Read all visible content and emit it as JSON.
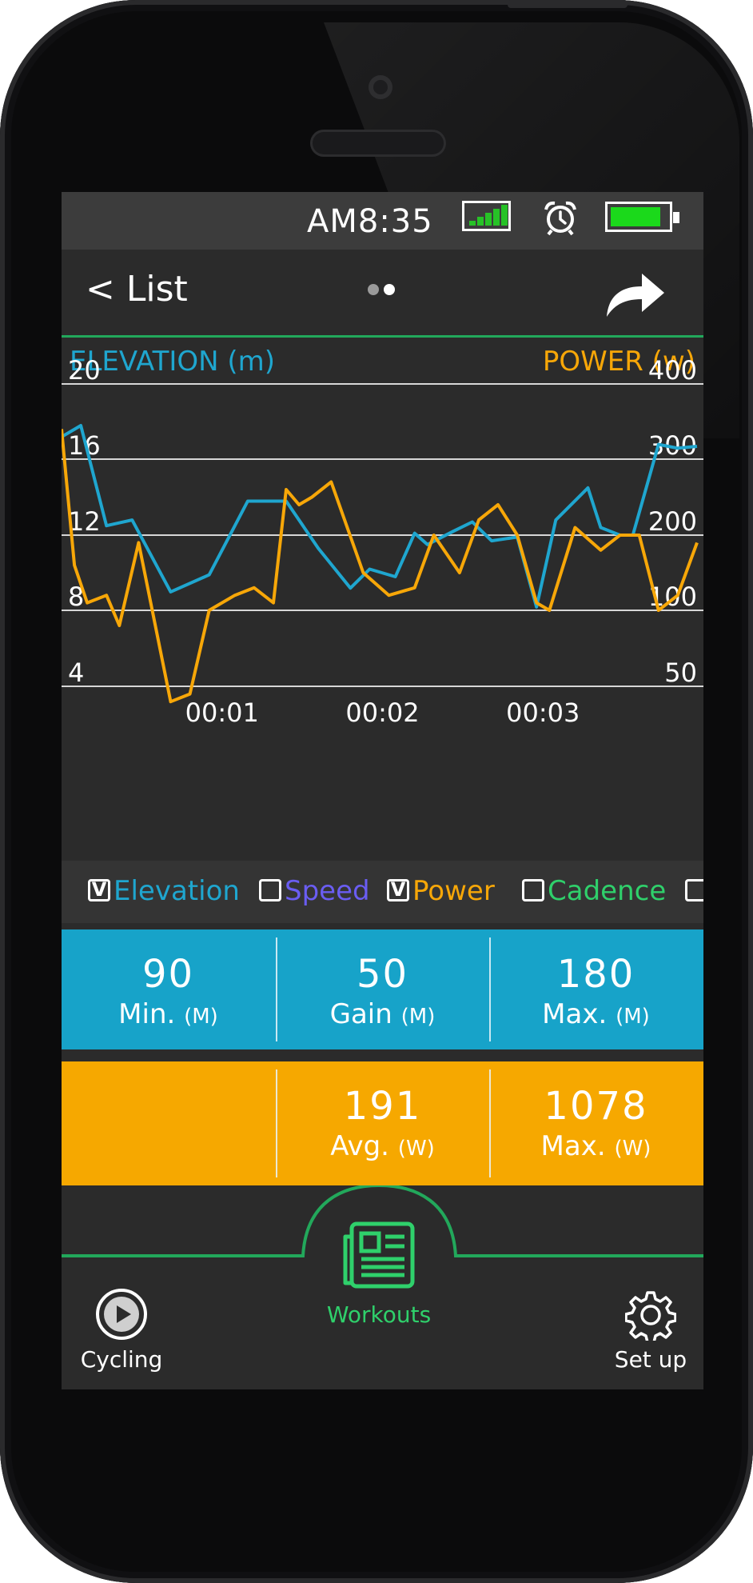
{
  "status": {
    "time": "AM8:35"
  },
  "nav": {
    "back_label": "< List"
  },
  "chart": {
    "left_title": "ELEVATION (m)",
    "right_title": "POWER (w)"
  },
  "chart_data": {
    "type": "line",
    "left_axis": {
      "title": "ELEVATION (m)",
      "ticks": [
        "20",
        "16",
        "12",
        "8",
        "4"
      ],
      "range": [
        4,
        20
      ]
    },
    "right_axis": {
      "title": "POWER (w)",
      "ticks": [
        "400",
        "300",
        "200",
        "100",
        "50"
      ]
    },
    "x_ticks": [
      "00:01",
      "00:02",
      "00:03"
    ],
    "grid": true,
    "series": [
      {
        "name": "Elevation",
        "axis": "left",
        "color": "#1fa6cf",
        "x": [
          0,
          0.03,
          0.07,
          0.11,
          0.17,
          0.23,
          0.29,
          0.35,
          0.4,
          0.45,
          0.48,
          0.52,
          0.55,
          0.57,
          0.61,
          0.64,
          0.67,
          0.71,
          0.74,
          0.77,
          0.82,
          0.84,
          0.87,
          0.89,
          0.93,
          0.96,
          0.99
        ],
        "y": [
          17.2,
          17.8,
          12.5,
          12.8,
          9.0,
          9.9,
          13.8,
          13.8,
          11.3,
          9.2,
          10.2,
          9.8,
          12.1,
          11.5,
          12.2,
          12.7,
          11.7,
          11.9,
          8.2,
          12.8,
          14.5,
          12.4,
          12.0,
          12.0,
          16.8,
          16.6,
          16.7
        ]
      },
      {
        "name": "Power",
        "axis": "right",
        "color": "#f7a708",
        "x": [
          0,
          0.02,
          0.04,
          0.07,
          0.09,
          0.12,
          0.17,
          0.2,
          0.23,
          0.27,
          0.3,
          0.33,
          0.35,
          0.37,
          0.39,
          0.42,
          0.47,
          0.51,
          0.55,
          0.58,
          0.62,
          0.65,
          0.68,
          0.71,
          0.74,
          0.76,
          0.8,
          0.84,
          0.87,
          0.9,
          0.93,
          0.96,
          0.99
        ],
        "y": [
          340,
          160,
          110,
          120,
          90,
          190,
          10,
          30,
          100,
          120,
          130,
          110,
          260,
          240,
          250,
          270,
          150,
          120,
          130,
          200,
          150,
          220,
          240,
          200,
          110,
          100,
          210,
          180,
          200,
          200,
          100,
          120,
          190
        ]
      }
    ]
  },
  "legend": [
    {
      "label": "Elevation",
      "checked": true,
      "color": "#1fa6cf"
    },
    {
      "label": "Speed",
      "checked": false,
      "color": "#6a5df2"
    },
    {
      "label": "Power",
      "checked": true,
      "color": "#f7a708"
    },
    {
      "label": "Cadence",
      "checked": false,
      "color": "#2fd06b"
    }
  ],
  "elevation_stats": [
    {
      "value": "90",
      "label": "Min.",
      "unit": "(M)"
    },
    {
      "value": "50",
      "label": "Gain",
      "unit": "(M)"
    },
    {
      "value": "180",
      "label": "Max.",
      "unit": "(M)"
    }
  ],
  "power_stats": [
    {
      "value": "191",
      "label": "Avg.",
      "unit": "(W)"
    },
    {
      "value": "1078",
      "label": "Max.",
      "unit": "(W)"
    }
  ],
  "tabs": {
    "cycling": "Cycling",
    "workouts": "Workouts",
    "setup": "Set up"
  },
  "colors": {
    "elevation": "#1fa6cf",
    "power": "#f7a708",
    "accent_green": "#22a85b",
    "screen_bg": "#2b2b2b"
  }
}
